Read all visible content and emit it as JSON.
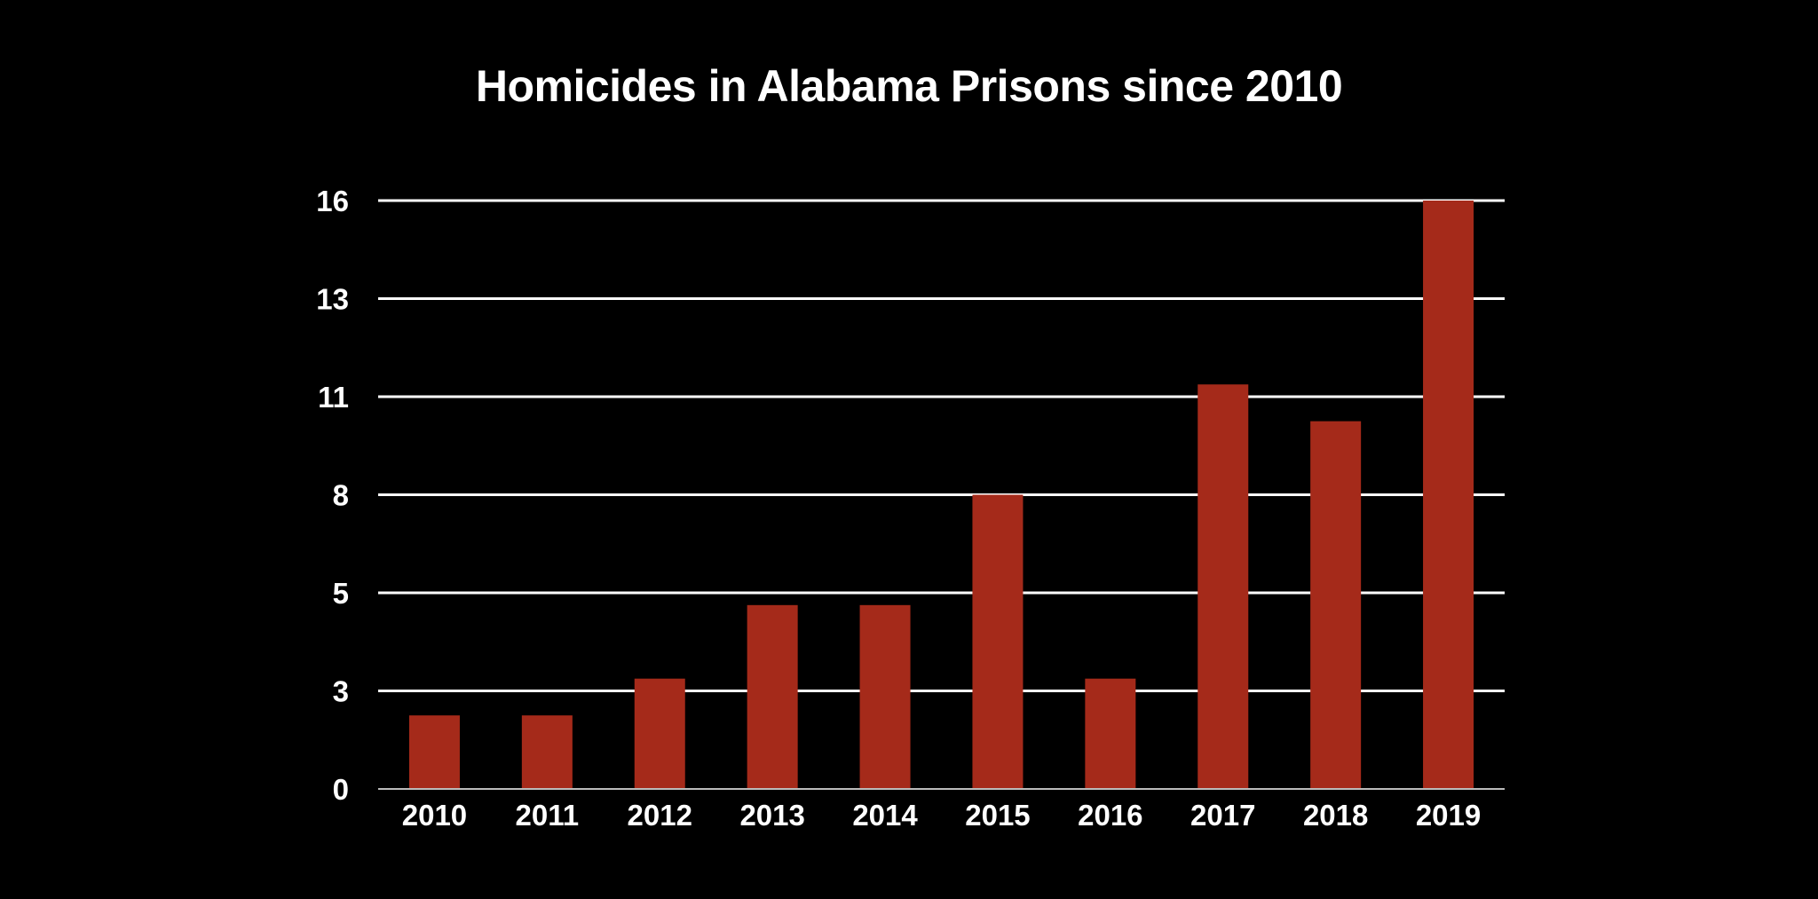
{
  "chart_data": {
    "type": "bar",
    "title": "Homicides in Alabama Prisons since 2010",
    "xlabel": "",
    "ylabel": "",
    "categories": [
      "2010",
      "2011",
      "2012",
      "2013",
      "2014",
      "2015",
      "2016",
      "2017",
      "2018",
      "2019"
    ],
    "values": [
      2,
      2,
      3,
      5,
      5,
      8,
      3,
      11,
      10,
      16
    ],
    "ylim": [
      0,
      16
    ],
    "yticks": [
      0,
      2.667,
      5.333,
      8,
      10.667,
      13.333,
      16
    ],
    "ytick_labels": [
      "0",
      "3",
      "5",
      "8",
      "11",
      "13",
      "16"
    ],
    "grid": true,
    "bar_color": "#a52a1a",
    "grid_color": "#ffffff",
    "background": "#000000"
  }
}
